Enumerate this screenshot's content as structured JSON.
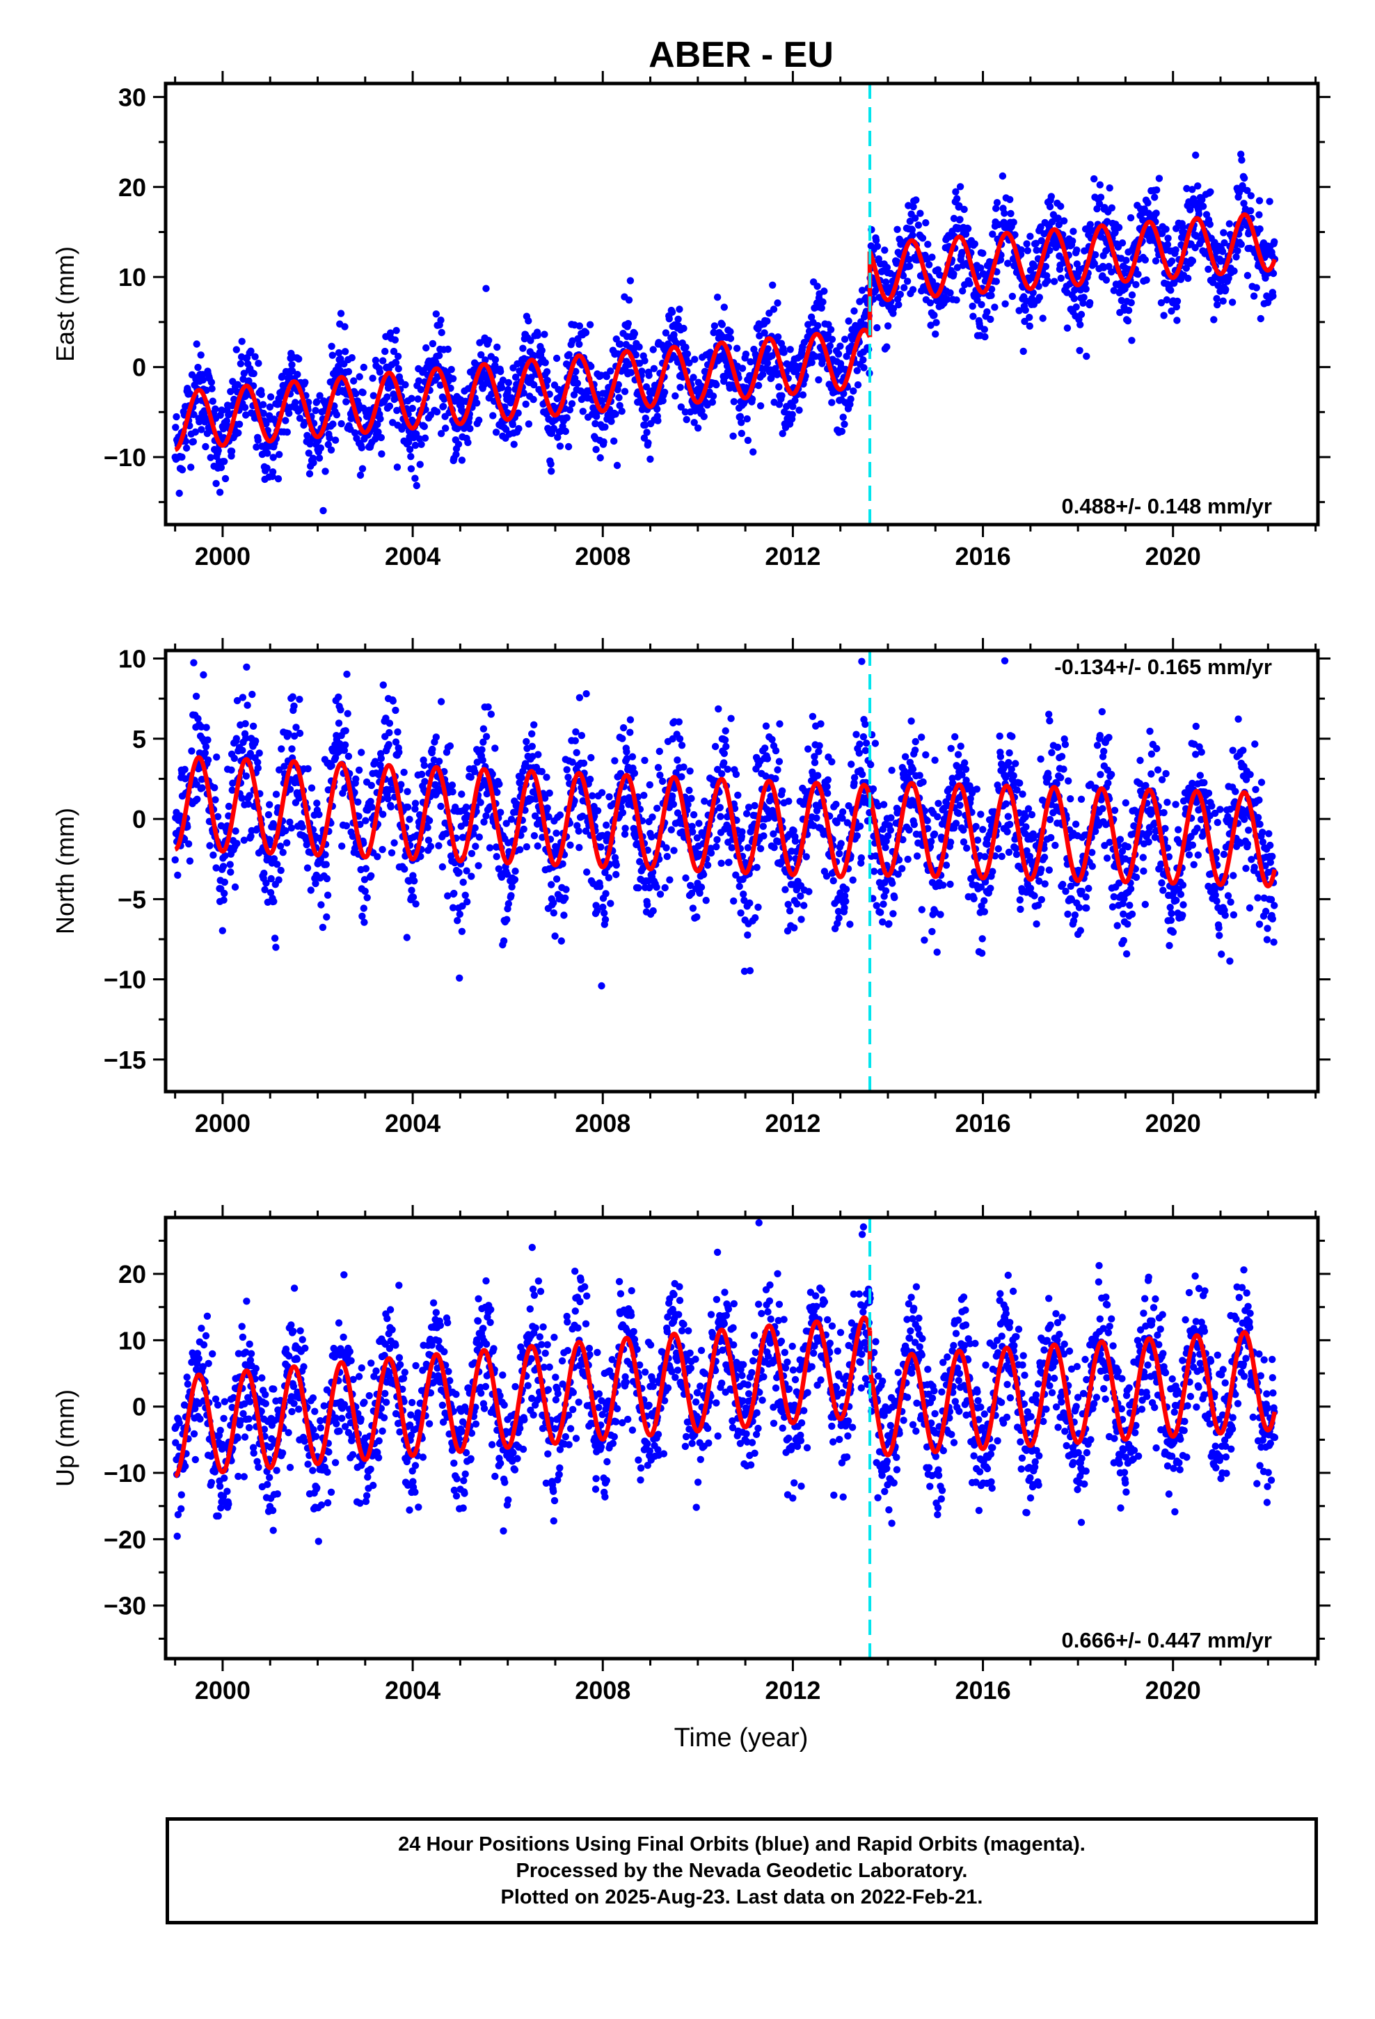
{
  "chart_data": [
    {
      "type": "scatter",
      "title": "ABER - EU",
      "ylabel": "East (mm)",
      "xlabel": "",
      "xlim": [
        1998.8,
        2023.05
      ],
      "ylim": [
        -17.5,
        31.5
      ],
      "xticks": [
        2000,
        2004,
        2008,
        2012,
        2016,
        2020
      ],
      "yticks": [
        -10,
        0,
        10,
        20,
        30
      ],
      "rate_label": "0.488+/- 0.148 mm/yr",
      "rate_position": "bottom-right",
      "offset_epoch": 2013.62,
      "data_range": [
        1999.0,
        2022.14
      ],
      "series": [
        {
          "name": "Final Orbits",
          "color": "#0000ff",
          "kind": "points"
        },
        {
          "name": "model",
          "color": "#ff0000",
          "kind": "line"
        }
      ],
      "model": {
        "before_offset": [
          [
            1999.0,
            -6
          ],
          [
            2013.62,
            1
          ]
        ],
        "after_offset": [
          [
            2013.62,
            10.5
          ],
          [
            2022.14,
            14
          ]
        ],
        "seasonal_amplitude": 3.2,
        "scatter_sd": 2.6
      },
      "scatter_noise": 2.6
    },
    {
      "type": "scatter",
      "title": "",
      "ylabel": "North (mm)",
      "xlabel": "",
      "xlim": [
        1998.8,
        2023.05
      ],
      "ylim": [
        -17,
        10.5
      ],
      "xticks": [
        2000,
        2004,
        2008,
        2012,
        2016,
        2020
      ],
      "yticks": [
        -15,
        -10,
        -5,
        0,
        5,
        10
      ],
      "rate_label": "-0.134+/- 0.165 mm/yr",
      "rate_position": "top-right",
      "offset_epoch": 2013.62,
      "data_range": [
        1999.0,
        2022.14
      ],
      "series": [
        {
          "name": "Final Orbits",
          "color": "#0000ff",
          "kind": "points"
        },
        {
          "name": "model",
          "color": "#ff0000",
          "kind": "line"
        }
      ],
      "model": {
        "before_offset": [
          [
            1999.0,
            1
          ],
          [
            2013.62,
            -0.8
          ]
        ],
        "after_offset": [
          [
            2013.62,
            -0.6
          ],
          [
            2022.14,
            -1.3
          ]
        ],
        "seasonal_amplitude": 2.9,
        "scatter_sd": 2.2
      },
      "scatter_noise": 2.2
    },
    {
      "type": "scatter",
      "title": "",
      "ylabel": "Up (mm)",
      "xlabel": "Time (year)",
      "xlim": [
        1998.8,
        2023.05
      ],
      "ylim": [
        -38,
        28.5
      ],
      "xticks": [
        2000,
        2004,
        2008,
        2012,
        2016,
        2020
      ],
      "yticks": [
        -30,
        -20,
        -10,
        0,
        10,
        20
      ],
      "rate_label": "0.666+/- 0.447 mm/yr",
      "rate_position": "bottom-right",
      "offset_epoch": 2013.62,
      "data_range": [
        1999.0,
        2022.14
      ],
      "series": [
        {
          "name": "Final Orbits",
          "color": "#0000ff",
          "kind": "points"
        },
        {
          "name": "model",
          "color": "#ff0000",
          "kind": "line"
        }
      ],
      "model": {
        "before_offset": [
          [
            1999.0,
            -3
          ],
          [
            2013.62,
            6
          ]
        ],
        "after_offset": [
          [
            2013.62,
            0
          ],
          [
            2022.14,
            4
          ]
        ],
        "seasonal_amplitude": 7.5,
        "scatter_sd": 5.0
      },
      "scatter_noise": 5.0
    }
  ],
  "footer": {
    "line1": "24 Hour Positions Using Final Orbits (blue) and Rapid Orbits (magenta).",
    "line2": "Processed by the Nevada Geodetic Laboratory.",
    "line3": "Plotted on 2025-Aug-23. Last data on 2022-Feb-21."
  }
}
